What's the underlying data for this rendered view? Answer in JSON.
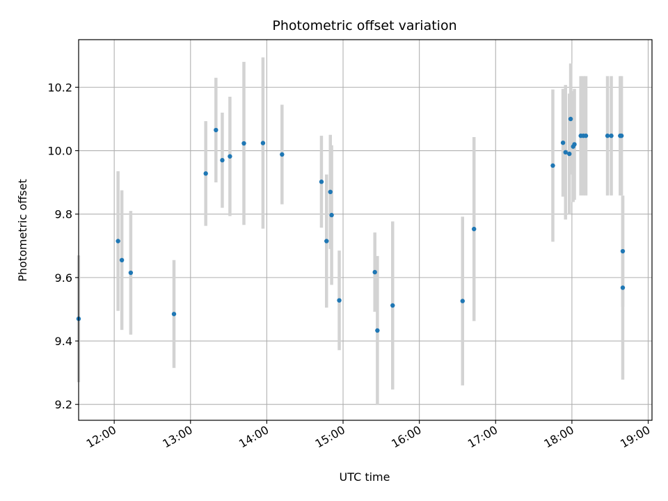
{
  "chart_data": {
    "type": "scatter",
    "title": "Photometric offset variation",
    "xlabel": "UTC time",
    "ylabel": "Photometric offset",
    "x_tick_labels": [
      "12:00",
      "13:00",
      "14:00",
      "15:00",
      "16:00",
      "17:00",
      "18:00",
      "19:00"
    ],
    "y_tick_labels": [
      "9.2",
      "9.4",
      "9.6",
      "9.8",
      "10.0",
      "10.2"
    ],
    "x_ticks": [
      "12:00",
      "13:00",
      "14:00",
      "15:00",
      "16:00",
      "17:00",
      "18:00",
      "19:00"
    ],
    "y_ticks": [
      9.2,
      9.4,
      9.6,
      9.8,
      10.0,
      10.2
    ],
    "xlim": [
      "11:32",
      "19:03"
    ],
    "ylim": [
      9.15,
      10.35
    ],
    "grid": true,
    "colors": {
      "points": "#1f77b4",
      "errorbars": "#d3d3d3",
      "grid": "#b0b0b0"
    },
    "points": [
      {
        "x": "11:32",
        "y": 9.47,
        "err": 0.2
      },
      {
        "x": "12:03",
        "y": 9.715,
        "err": 0.22
      },
      {
        "x": "12:06",
        "y": 9.655,
        "err": 0.22
      },
      {
        "x": "12:13",
        "y": 9.615,
        "err": 0.195
      },
      {
        "x": "12:47",
        "y": 9.485,
        "err": 0.17
      },
      {
        "x": "13:12",
        "y": 9.928,
        "err": 0.165
      },
      {
        "x": "13:20",
        "y": 10.065,
        "err": 0.165
      },
      {
        "x": "13:25",
        "y": 9.97,
        "err": 0.15
      },
      {
        "x": "13:31",
        "y": 9.982,
        "err": 0.188
      },
      {
        "x": "13:42",
        "y": 10.023,
        "err": 0.257
      },
      {
        "x": "13:57",
        "y": 10.024,
        "err": 0.27
      },
      {
        "x": "14:12",
        "y": 9.988,
        "err": 0.157
      },
      {
        "x": "14:43",
        "y": 9.902,
        "err": 0.145
      },
      {
        "x": "14:47",
        "y": 9.715,
        "err": 0.21
      },
      {
        "x": "14:50",
        "y": 9.87,
        "err": 0.18
      },
      {
        "x": "14:51",
        "y": 9.797,
        "err": 0.22
      },
      {
        "x": "14:57",
        "y": 9.528,
        "err": 0.157
      },
      {
        "x": "15:25",
        "y": 9.617,
        "err": 0.125
      },
      {
        "x": "15:27",
        "y": 9.433,
        "err": 0.235
      },
      {
        "x": "15:39",
        "y": 9.512,
        "err": 0.265
      },
      {
        "x": "16:34",
        "y": 9.526,
        "err": 0.266
      },
      {
        "x": "16:43",
        "y": 9.753,
        "err": 0.29
      },
      {
        "x": "17:45",
        "y": 9.953,
        "err": 0.24
      },
      {
        "x": "17:53",
        "y": 10.025,
        "err": 0.17
      },
      {
        "x": "17:55",
        "y": 9.995,
        "err": 0.212
      },
      {
        "x": "17:58",
        "y": 9.99,
        "err": 0.19
      },
      {
        "x": "17:59",
        "y": 10.1,
        "err": 0.175
      },
      {
        "x": "18:01",
        "y": 10.013,
        "err": 0.175
      },
      {
        "x": "18:02",
        "y": 10.02,
        "err": 0.175
      },
      {
        "x": "18:07",
        "y": 10.047,
        "err": 0.188
      },
      {
        "x": "18:09",
        "y": 10.047,
        "err": 0.188
      },
      {
        "x": "18:11",
        "y": 10.047,
        "err": 0.188
      },
      {
        "x": "18:28",
        "y": 10.047,
        "err": 0.188
      },
      {
        "x": "18:31",
        "y": 10.047,
        "err": 0.188
      },
      {
        "x": "18:38",
        "y": 10.047,
        "err": 0.188
      },
      {
        "x": "18:39",
        "y": 10.047,
        "err": 0.188
      },
      {
        "x": "18:40",
        "y": 9.683,
        "err": 0.175
      },
      {
        "x": "18:40",
        "y": 9.568,
        "err": 0.29
      }
    ]
  }
}
